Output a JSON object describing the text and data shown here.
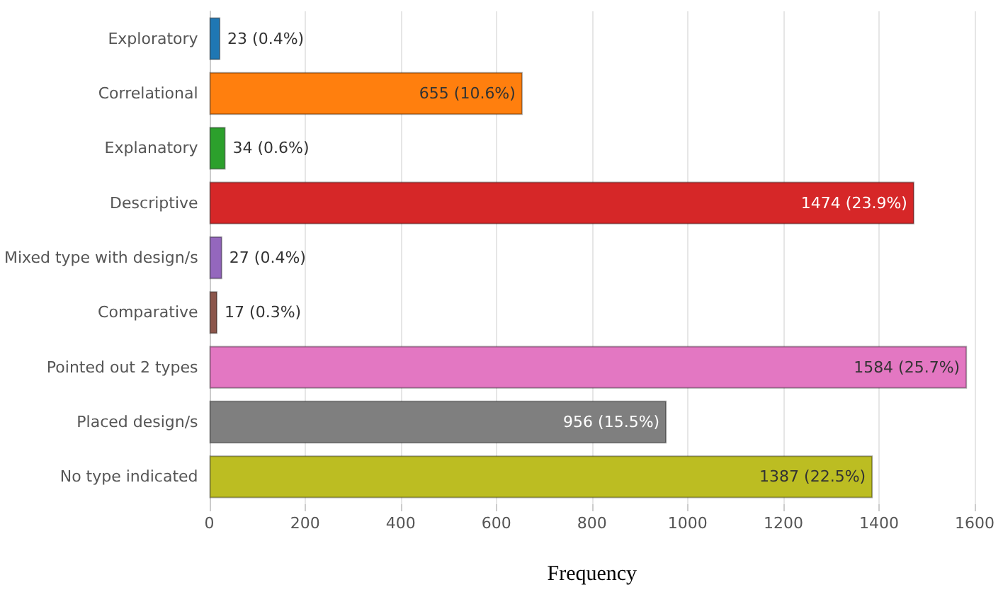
{
  "chart_data": {
    "type": "bar",
    "orientation": "horizontal",
    "xlabel": "Frequency",
    "categories": [
      "Exploratory",
      "Correlational",
      "Explanatory",
      "Descriptive",
      "Mixed type with design/s",
      "Comparative",
      "Pointed out 2 types",
      "Placed design/s",
      "No type indicated"
    ],
    "values": [
      23,
      655,
      34,
      1474,
      27,
      17,
      1584,
      956,
      1387
    ],
    "value_labels": [
      "23 (0.4%)",
      "655 (10.6%)",
      "34 (0.6%)",
      "1474 (23.9%)",
      "27 (0.4%)",
      "17 (0.3%)",
      "1584 (25.7%)",
      "956 (15.5%)",
      "1387 (22.5%)"
    ],
    "colors": [
      "#1f77b4",
      "#ff7f0e",
      "#2ca02c",
      "#d62728",
      "#9467bd",
      "#8c564b",
      "#e377c2",
      "#7f7f7f",
      "#bcbd22"
    ],
    "xlim": [
      0,
      1600
    ],
    "xticks": [
      0,
      200,
      400,
      600,
      800,
      1000,
      1200,
      1400,
      1600
    ],
    "grid": "x"
  }
}
